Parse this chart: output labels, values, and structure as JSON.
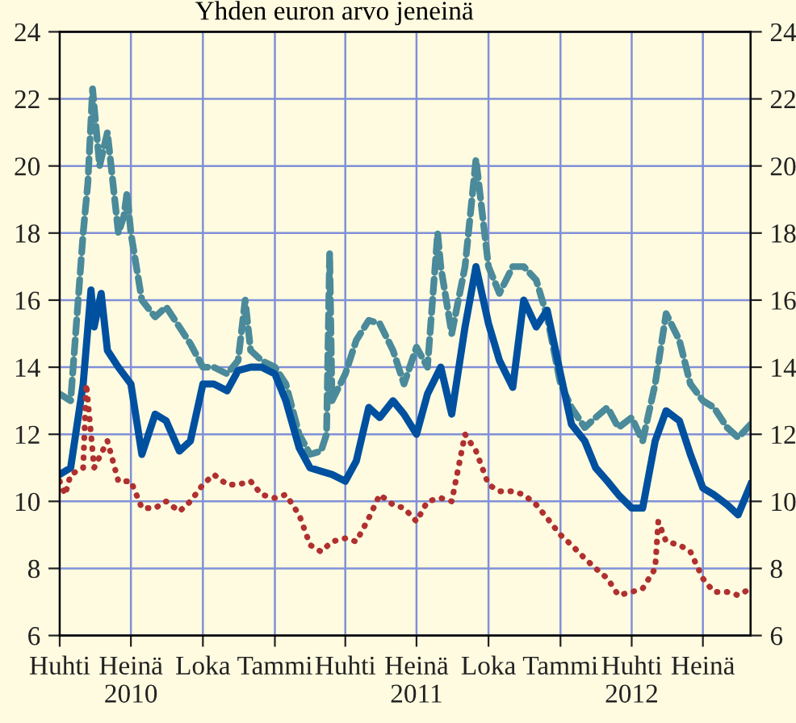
{
  "chart_data": {
    "type": "line",
    "title": "Yhden euron arvo jeneinä",
    "xlim": [
      "2010-04-01",
      "2012-08-31"
    ],
    "xticks": [
      {
        "value": "2010-04-01",
        "label": "Huhti"
      },
      {
        "value": "2010-07-01",
        "label": "Heinä\n2010"
      },
      {
        "value": "2010-10-01",
        "label": "Loka"
      },
      {
        "value": "2011-01-01",
        "label": "Tammi"
      },
      {
        "value": "2011-04-01",
        "label": "Huhti"
      },
      {
        "value": "2011-07-01",
        "label": "Heinä\n2011"
      },
      {
        "value": "2011-10-01",
        "label": "Loka"
      },
      {
        "value": "2012-01-01",
        "label": "Tammi"
      },
      {
        "value": "2012-04-01",
        "label": "Huhti\n2012"
      },
      {
        "value": "2012-07-01",
        "label": "Heinä"
      }
    ],
    "ylim": [
      6,
      24
    ],
    "yticks": [
      6,
      8,
      10,
      12,
      14,
      16,
      18,
      20,
      22,
      24
    ],
    "y2lim": [
      6,
      24
    ],
    "y2ticks": [
      6,
      8,
      10,
      12,
      14,
      16,
      18,
      20,
      22,
      24
    ],
    "grid": true,
    "legend": false,
    "series": [
      {
        "color": "#4a8a9a",
        "line_style": "dashed",
        "x": [
          "2010-04-01",
          "2010-04-15",
          "2010-05-01",
          "2010-05-07",
          "2010-05-13",
          "2010-05-22",
          "2010-06-01",
          "2010-06-15",
          "2010-06-22",
          "2010-06-26",
          "2010-07-01",
          "2010-07-15",
          "2010-08-01",
          "2010-08-15",
          "2010-09-01",
          "2010-09-15",
          "2010-10-01",
          "2010-10-15",
          "2010-11-01",
          "2010-11-15",
          "2010-11-24",
          "2010-12-01",
          "2010-12-15",
          "2011-01-01",
          "2011-01-15",
          "2011-02-01",
          "2011-02-15",
          "2011-03-01",
          "2011-03-08",
          "2011-03-12",
          "2011-03-15",
          "2011-04-01",
          "2011-04-15",
          "2011-05-01",
          "2011-05-15",
          "2011-06-01",
          "2011-06-15",
          "2011-07-01",
          "2011-07-15",
          "2011-07-28",
          "2011-08-01",
          "2011-08-15",
          "2011-09-01",
          "2011-09-15",
          "2011-10-01",
          "2011-10-15",
          "2011-11-01",
          "2011-11-15",
          "2011-12-01",
          "2011-12-15",
          "2012-01-01",
          "2012-01-15",
          "2012-02-01",
          "2012-02-15",
          "2012-03-01",
          "2012-03-15",
          "2012-04-01",
          "2012-04-15",
          "2012-05-01",
          "2012-05-15",
          "2012-06-01",
          "2012-06-15",
          "2012-07-01",
          "2012-07-15",
          "2012-08-01",
          "2012-08-15",
          "2012-08-31"
        ],
        "values": [
          13.2,
          13.0,
          18.0,
          19.5,
          22.3,
          20.0,
          21.0,
          18.0,
          18.5,
          19.2,
          18.0,
          16.0,
          15.5,
          15.8,
          15.2,
          14.7,
          14.0,
          14.0,
          13.8,
          14.2,
          16.0,
          14.5,
          14.2,
          14.0,
          13.5,
          12.0,
          11.4,
          11.5,
          12.0,
          17.4,
          13.0,
          13.8,
          14.8,
          15.4,
          15.3,
          14.5,
          13.5,
          14.6,
          14.0,
          18.0,
          17.0,
          15.0,
          17.0,
          20.2,
          17.0,
          16.2,
          17.0,
          17.0,
          16.6,
          15.5,
          13.5,
          12.8,
          12.2,
          12.5,
          12.8,
          12.2,
          12.5,
          11.8,
          13.5,
          15.6,
          14.8,
          13.5,
          13.0,
          12.8,
          12.2,
          11.9,
          12.3
        ]
      },
      {
        "color": "#0050a0",
        "line_style": "solid",
        "x": [
          "2010-04-01",
          "2010-04-15",
          "2010-05-01",
          "2010-05-11",
          "2010-05-15",
          "2010-05-24",
          "2010-06-01",
          "2010-06-15",
          "2010-07-01",
          "2010-07-15",
          "2010-08-01",
          "2010-08-15",
          "2010-09-01",
          "2010-09-15",
          "2010-10-01",
          "2010-10-15",
          "2010-11-01",
          "2010-11-15",
          "2010-12-01",
          "2010-12-15",
          "2011-01-01",
          "2011-01-15",
          "2011-02-01",
          "2011-02-15",
          "2011-03-01",
          "2011-03-15",
          "2011-04-01",
          "2011-04-15",
          "2011-05-01",
          "2011-05-15",
          "2011-06-01",
          "2011-06-15",
          "2011-07-01",
          "2011-07-15",
          "2011-08-01",
          "2011-08-15",
          "2011-09-01",
          "2011-09-15",
          "2011-10-01",
          "2011-10-15",
          "2011-11-01",
          "2011-11-15",
          "2011-12-01",
          "2011-12-15",
          "2012-01-01",
          "2012-01-15",
          "2012-02-01",
          "2012-02-15",
          "2012-03-01",
          "2012-03-15",
          "2012-04-01",
          "2012-04-15",
          "2012-05-01",
          "2012-05-15",
          "2012-06-01",
          "2012-06-15",
          "2012-07-01",
          "2012-07-15",
          "2012-08-01",
          "2012-08-15",
          "2012-08-31"
        ],
        "values": [
          10.8,
          11.0,
          13.5,
          16.3,
          15.2,
          16.2,
          14.5,
          14.0,
          13.5,
          11.4,
          12.6,
          12.4,
          11.5,
          11.8,
          13.5,
          13.5,
          13.3,
          13.9,
          14.0,
          14.0,
          13.8,
          13.0,
          11.6,
          11.0,
          10.9,
          10.8,
          10.6,
          11.2,
          12.8,
          12.5,
          13.0,
          12.6,
          12.0,
          13.2,
          14.0,
          12.6,
          15.2,
          17.0,
          15.3,
          14.2,
          13.4,
          16.0,
          15.2,
          15.7,
          13.8,
          12.3,
          11.8,
          11.0,
          10.6,
          10.2,
          9.8,
          9.8,
          11.8,
          12.7,
          12.4,
          11.4,
          10.4,
          10.2,
          9.9,
          9.6,
          10.5
        ]
      },
      {
        "color": "#b03030",
        "line_style": "dotted",
        "x": [
          "2010-04-01",
          "2010-04-08",
          "2010-04-15",
          "2010-05-01",
          "2010-05-05",
          "2010-05-15",
          "2010-06-01",
          "2010-06-15",
          "2010-07-01",
          "2010-07-15",
          "2010-08-01",
          "2010-08-15",
          "2010-09-01",
          "2010-09-15",
          "2010-10-01",
          "2010-10-15",
          "2010-11-01",
          "2010-11-15",
          "2010-12-01",
          "2010-12-15",
          "2011-01-01",
          "2011-01-15",
          "2011-02-01",
          "2011-02-15",
          "2011-03-01",
          "2011-03-15",
          "2011-04-01",
          "2011-04-15",
          "2011-05-01",
          "2011-05-15",
          "2011-06-01",
          "2011-06-15",
          "2011-07-01",
          "2011-07-15",
          "2011-08-01",
          "2011-08-15",
          "2011-09-01",
          "2011-09-15",
          "2011-10-01",
          "2011-10-15",
          "2011-11-01",
          "2011-11-15",
          "2011-12-01",
          "2011-12-15",
          "2012-01-01",
          "2012-01-15",
          "2012-02-01",
          "2012-02-15",
          "2012-03-01",
          "2012-03-15",
          "2012-04-01",
          "2012-04-15",
          "2012-05-01",
          "2012-05-05",
          "2012-05-15",
          "2012-06-01",
          "2012-06-15",
          "2012-07-01",
          "2012-07-15",
          "2012-08-01",
          "2012-08-15",
          "2012-08-31"
        ],
        "values": [
          10.6,
          10.2,
          10.8,
          11.0,
          13.5,
          11.0,
          11.8,
          10.6,
          10.6,
          9.8,
          9.8,
          10.0,
          9.7,
          10.0,
          10.5,
          10.8,
          10.5,
          10.5,
          10.6,
          10.2,
          10.1,
          10.2,
          9.6,
          8.7,
          8.5,
          8.8,
          8.9,
          8.8,
          9.5,
          10.2,
          9.9,
          9.8,
          9.4,
          10.0,
          10.1,
          10.0,
          12.0,
          11.5,
          10.5,
          10.3,
          10.3,
          10.2,
          9.9,
          9.5,
          9.0,
          8.7,
          8.3,
          8.0,
          7.7,
          7.2,
          7.3,
          7.4,
          8.0,
          9.4,
          8.8,
          8.7,
          8.5,
          7.7,
          7.3,
          7.3,
          7.2,
          7.4
        ]
      }
    ]
  }
}
